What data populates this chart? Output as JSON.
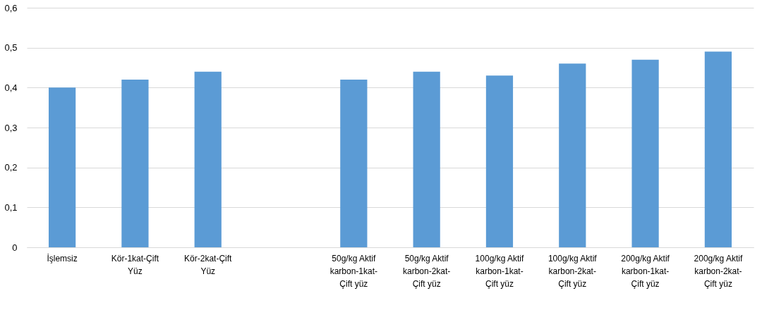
{
  "chart_data": {
    "type": "bar",
    "categories": [
      "İşlemsiz",
      "Kör-1kat-Çift Yüz",
      "Kör-2kat-Çift Yüz",
      null,
      "50g/kg Aktif karbon-1kat-Çift yüz",
      "50g/kg Aktif karbon-2kat-Çift yüz",
      "100g/kg Aktif karbon-1kat-Çift yüz",
      "100g/kg Aktif karbon-2kat-Çift yüz",
      "200g/kg Aktif karbon-1kat-Çift yüz",
      "200g/kg Aktif karbon-2kat-Çift yüz"
    ],
    "values": [
      0.4,
      0.42,
      0.44,
      null,
      0.42,
      0.44,
      0.43,
      0.46,
      0.47,
      0.49
    ],
    "color": "#5b9bd5",
    "ylim": [
      0,
      0.6
    ],
    "yticks": [
      {
        "value": 0,
        "label": "0"
      },
      {
        "value": 0.1,
        "label": "0,1"
      },
      {
        "value": 0.2,
        "label": "0,2"
      },
      {
        "value": 0.3,
        "label": "0,3"
      },
      {
        "value": 0.4,
        "label": "0,4"
      },
      {
        "value": 0.5,
        "label": "0,5"
      },
      {
        "value": 0.6,
        "label": "0,6"
      }
    ],
    "grid": "y"
  }
}
